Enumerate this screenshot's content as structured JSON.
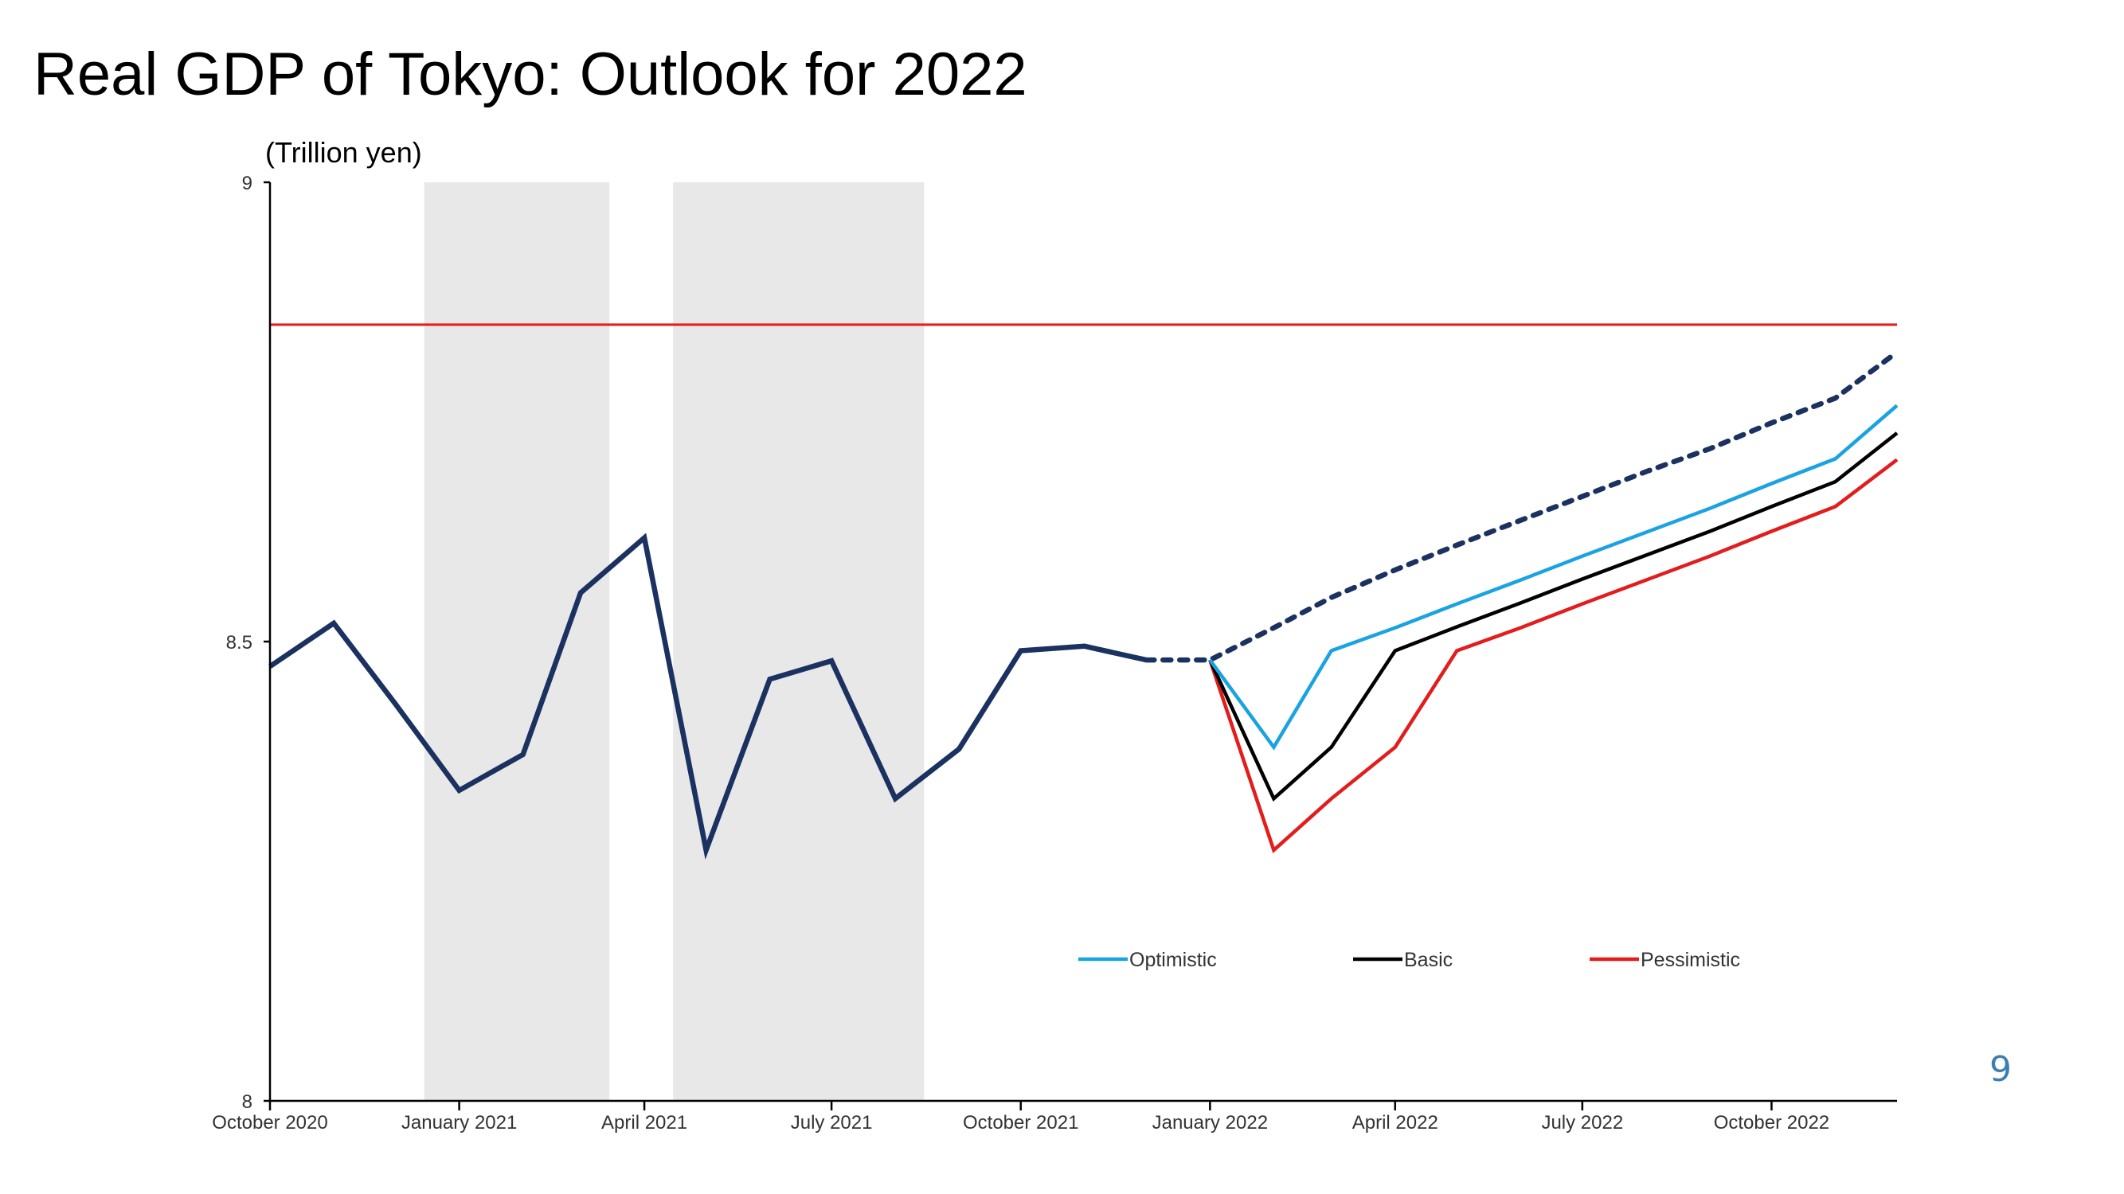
{
  "slide": {
    "title": "Real GDP of Tokyo: Outlook for 2022",
    "page_number": "9"
  },
  "chart_data": {
    "type": "line",
    "title": "Real GDP of Tokyo: Outlook for 2022",
    "ylabel": "(Trillion yen)",
    "xlabel": "",
    "ylim": [
      8,
      9
    ],
    "yticks": [
      8,
      8.5,
      9
    ],
    "ytick_labels": [
      "8",
      "8.5",
      "9"
    ],
    "x": [
      "2020-10",
      "2020-11",
      "2020-12",
      "2021-01",
      "2021-02",
      "2021-03",
      "2021-04",
      "2021-05",
      "2021-06",
      "2021-07",
      "2021-08",
      "2021-09",
      "2021-10",
      "2021-11",
      "2021-12",
      "2022-01",
      "2022-02",
      "2022-03",
      "2022-04",
      "2022-05",
      "2022-06",
      "2022-07",
      "2022-08",
      "2022-09",
      "2022-10",
      "2022-11",
      "2022-12"
    ],
    "xticks": [
      "2020-10",
      "2021-01",
      "2021-04",
      "2021-07",
      "2021-10",
      "2022-01",
      "2022-04",
      "2022-07",
      "2022-10"
    ],
    "xtick_labels": [
      "October 2020",
      "January 2021",
      "April 2021",
      "July 2021",
      "October 2021",
      "January 2022",
      "April 2022",
      "July 2022",
      "October 2022"
    ],
    "shaded_periods": [
      {
        "start": "2020-12-15",
        "end": "2021-03-15"
      },
      {
        "start": "2021-04-15",
        "end": "2021-08-15"
      }
    ],
    "reference_line": {
      "y": 8.845,
      "color": "#e31c1c"
    },
    "series": [
      {
        "name": "",
        "role": "actual",
        "style": "solid",
        "color": "#1b3160",
        "values": [
          8.473,
          8.52,
          8.432,
          8.338,
          8.377,
          8.553,
          8.613,
          8.273,
          8.459,
          8.479,
          8.329,
          8.383,
          8.49,
          8.495,
          8.48,
          null,
          null,
          null,
          null,
          null,
          null,
          null,
          null,
          null,
          null,
          null,
          null
        ]
      },
      {
        "name": "",
        "role": "trend",
        "style": "dashed",
        "color": "#1b3160",
        "values": [
          null,
          null,
          null,
          null,
          null,
          null,
          null,
          null,
          null,
          null,
          null,
          null,
          null,
          null,
          8.48,
          8.48,
          8.515,
          8.548,
          8.578,
          8.605,
          8.632,
          8.658,
          8.685,
          8.71,
          8.738,
          8.765,
          8.815
        ]
      },
      {
        "name": "Optimistic",
        "style": "solid",
        "color": "#1aa3e0",
        "values": [
          null,
          null,
          null,
          null,
          null,
          null,
          null,
          null,
          null,
          null,
          null,
          null,
          null,
          null,
          null,
          8.48,
          8.385,
          8.49,
          8.515,
          8.541,
          8.567,
          8.593,
          8.619,
          8.645,
          8.672,
          8.699,
          8.757
        ]
      },
      {
        "name": "Basic",
        "style": "solid",
        "color": "#000000",
        "values": [
          null,
          null,
          null,
          null,
          null,
          null,
          null,
          null,
          null,
          null,
          null,
          null,
          null,
          null,
          null,
          8.48,
          8.329,
          8.385,
          8.49,
          8.516,
          8.542,
          8.568,
          8.594,
          8.62,
          8.647,
          8.674,
          8.727
        ]
      },
      {
        "name": "Pessimistic",
        "style": "solid",
        "color": "#e31c1c",
        "values": [
          null,
          null,
          null,
          null,
          null,
          null,
          null,
          null,
          null,
          null,
          null,
          null,
          null,
          null,
          null,
          8.48,
          8.273,
          8.329,
          8.385,
          8.49,
          8.515,
          8.541,
          8.567,
          8.593,
          8.62,
          8.647,
          8.698
        ]
      }
    ],
    "legend": {
      "placement": "bottom-center",
      "entries": [
        "Optimistic",
        "Basic",
        "Pessimistic"
      ]
    },
    "grid": false
  }
}
